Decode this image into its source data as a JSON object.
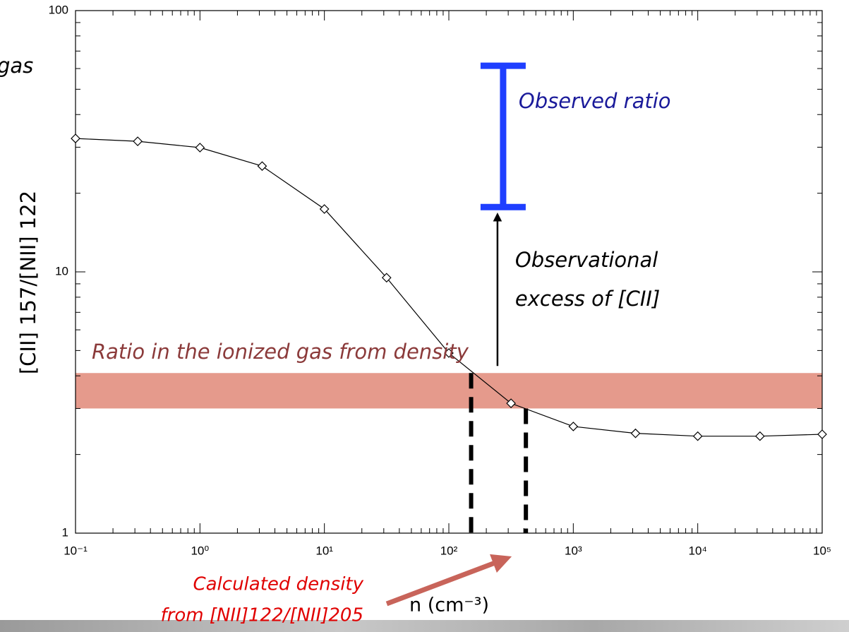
{
  "chart_data": {
    "type": "line",
    "x": [
      0.1,
      0.316,
      1,
      3.16,
      10,
      31.6,
      100,
      316,
      1000,
      3162,
      10000,
      31623,
      100000
    ],
    "values": [
      32.4,
      31.6,
      29.9,
      25.4,
      17.4,
      9.5,
      4.89,
      3.14,
      2.56,
      2.41,
      2.35,
      2.35,
      2.39
    ],
    "color": "#000000",
    "marker": "diamond",
    "xlabel": "n (cm⁻³)",
    "ylabel": "[CII] 157/[NII] 122",
    "xlog": true,
    "ylog": true,
    "xlim": [
      0.1,
      100000
    ],
    "ylim": [
      1,
      100
    ],
    "xticks": [
      {
        "value": 0.1,
        "label": "10⁻¹"
      },
      {
        "value": 1,
        "label": "10⁰"
      },
      {
        "value": 10,
        "label": "10¹"
      },
      {
        "value": 100,
        "label": "10²"
      },
      {
        "value": 1000,
        "label": "10³"
      },
      {
        "value": 10000,
        "label": "10⁴"
      },
      {
        "value": 100000,
        "label": "10⁵"
      }
    ],
    "yticks": [
      1,
      10,
      100
    ],
    "annotations": {
      "fragment": "gas",
      "observed_ratio": {
        "text": "Observed ratio",
        "x": 273,
        "low": 17.7,
        "high": 61.5,
        "color": "#1f3fff",
        "text_color": "#1a1a9a"
      },
      "excess": {
        "lines": [
          "Observational",
          "excess of [CII]"
        ]
      },
      "ionized_band": {
        "text": "Ratio in the ionized gas from density",
        "low": 3.0,
        "high": 4.1,
        "color": "#e08878",
        "text_color": "#8b3a3a"
      },
      "density": {
        "lines": [
          "Calculated density",
          "from [NII]122/[NII]205"
        ],
        "x": [
          151,
          416
        ],
        "color": "#e00000",
        "arrow_color": "#c8645a"
      }
    }
  }
}
